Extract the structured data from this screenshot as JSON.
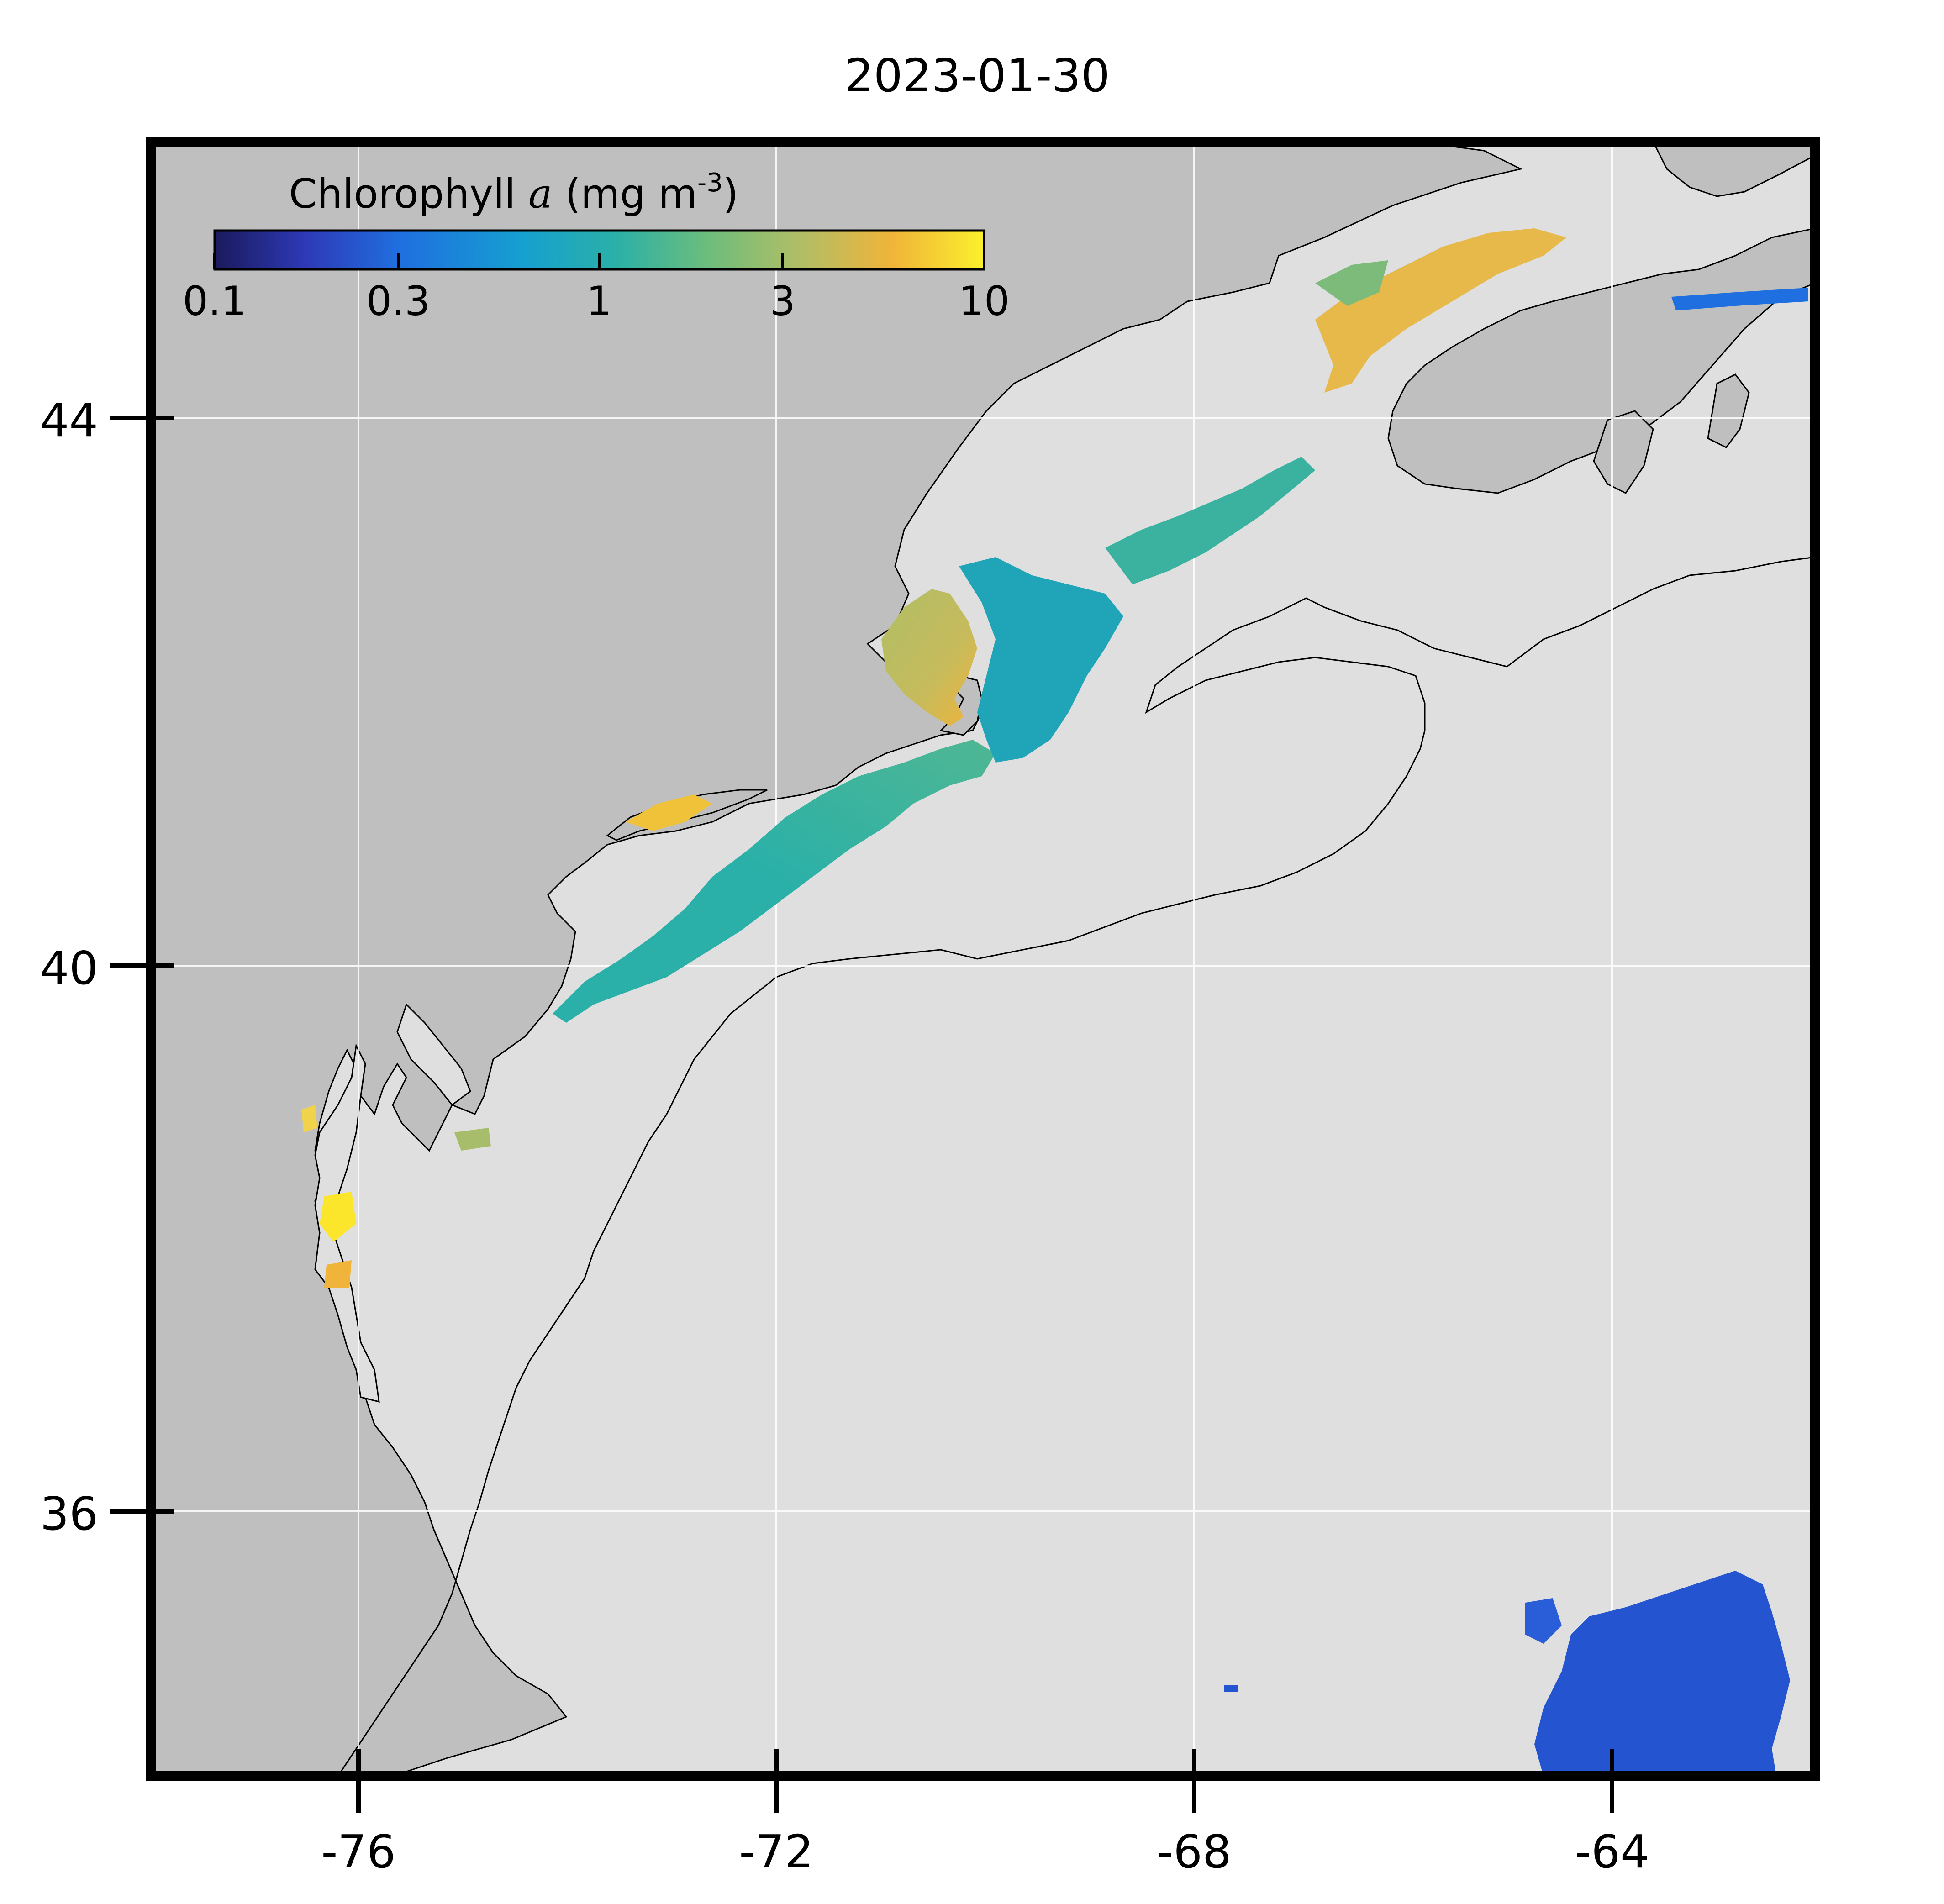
{
  "map": {
    "title": "2023-01-30",
    "xticks": [
      "-76",
      "-72",
      "-68",
      "-64"
    ],
    "yticks": [
      "44",
      "40",
      "36"
    ],
    "grid": true,
    "colors": {
      "land": "#bfbfbf",
      "ocean": "#dfdfdf",
      "frame": "#000000",
      "coastline": "#000000"
    },
    "colorbar": {
      "label_prefix": "Chlorophyll ",
      "label_var": "a",
      "label_unit": " (mg m",
      "label_exp": "-3",
      "label_close": ")",
      "ticks": [
        "0.1",
        "0.3",
        "1",
        "3",
        "10"
      ],
      "scale": "log",
      "placement": "top-left",
      "colormap": [
        "#1a1a5c",
        "#2e3ab8",
        "#1f6fe0",
        "#16a0d0",
        "#2ab0a8",
        "#6cbd7c",
        "#b0be66",
        "#f0b43a",
        "#fbf02c"
      ]
    }
  }
}
